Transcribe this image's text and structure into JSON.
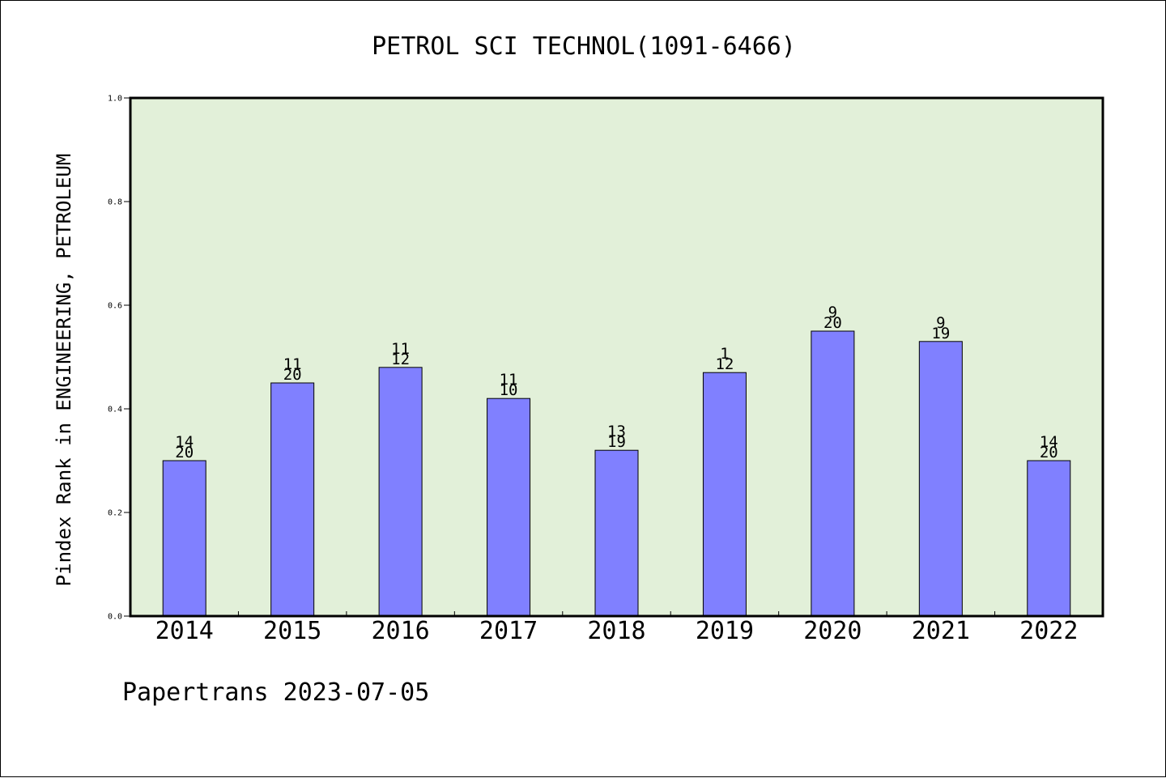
{
  "chart_data": {
    "type": "bar",
    "title": "PETROL SCI TECHNOL(1091-6466)",
    "xlabel": "",
    "ylabel": "Pindex Rank in ENGINEERING, PETROLEUM",
    "ylim": [
      0,
      1.0
    ],
    "yticks": [
      "0.0",
      "0.2",
      "0.4",
      "0.6",
      "0.8",
      "1.0"
    ],
    "grid": false,
    "plot_background": "#e2f0d9",
    "bar_color": "#8080ff",
    "categories": [
      "2014",
      "2015",
      "2016",
      "2017",
      "2018",
      "2019",
      "2020",
      "2021",
      "2022"
    ],
    "values": [
      0.3,
      0.45,
      0.48,
      0.42,
      0.32,
      0.47,
      0.55,
      0.53,
      0.3
    ],
    "annotations": [
      {
        "top": "14",
        "bottom": "20"
      },
      {
        "top": "11",
        "bottom": "20"
      },
      {
        "top": "11",
        "bottom": "12"
      },
      {
        "top": "11",
        "bottom": "10"
      },
      {
        "top": "13",
        "bottom": "19"
      },
      {
        "top": "1",
        "bottom": "12"
      },
      {
        "top": "9",
        "bottom": "20"
      },
      {
        "top": "9",
        "bottom": "19"
      },
      {
        "top": "14",
        "bottom": "20"
      }
    ]
  },
  "footer": "Papertrans 2023-07-05"
}
